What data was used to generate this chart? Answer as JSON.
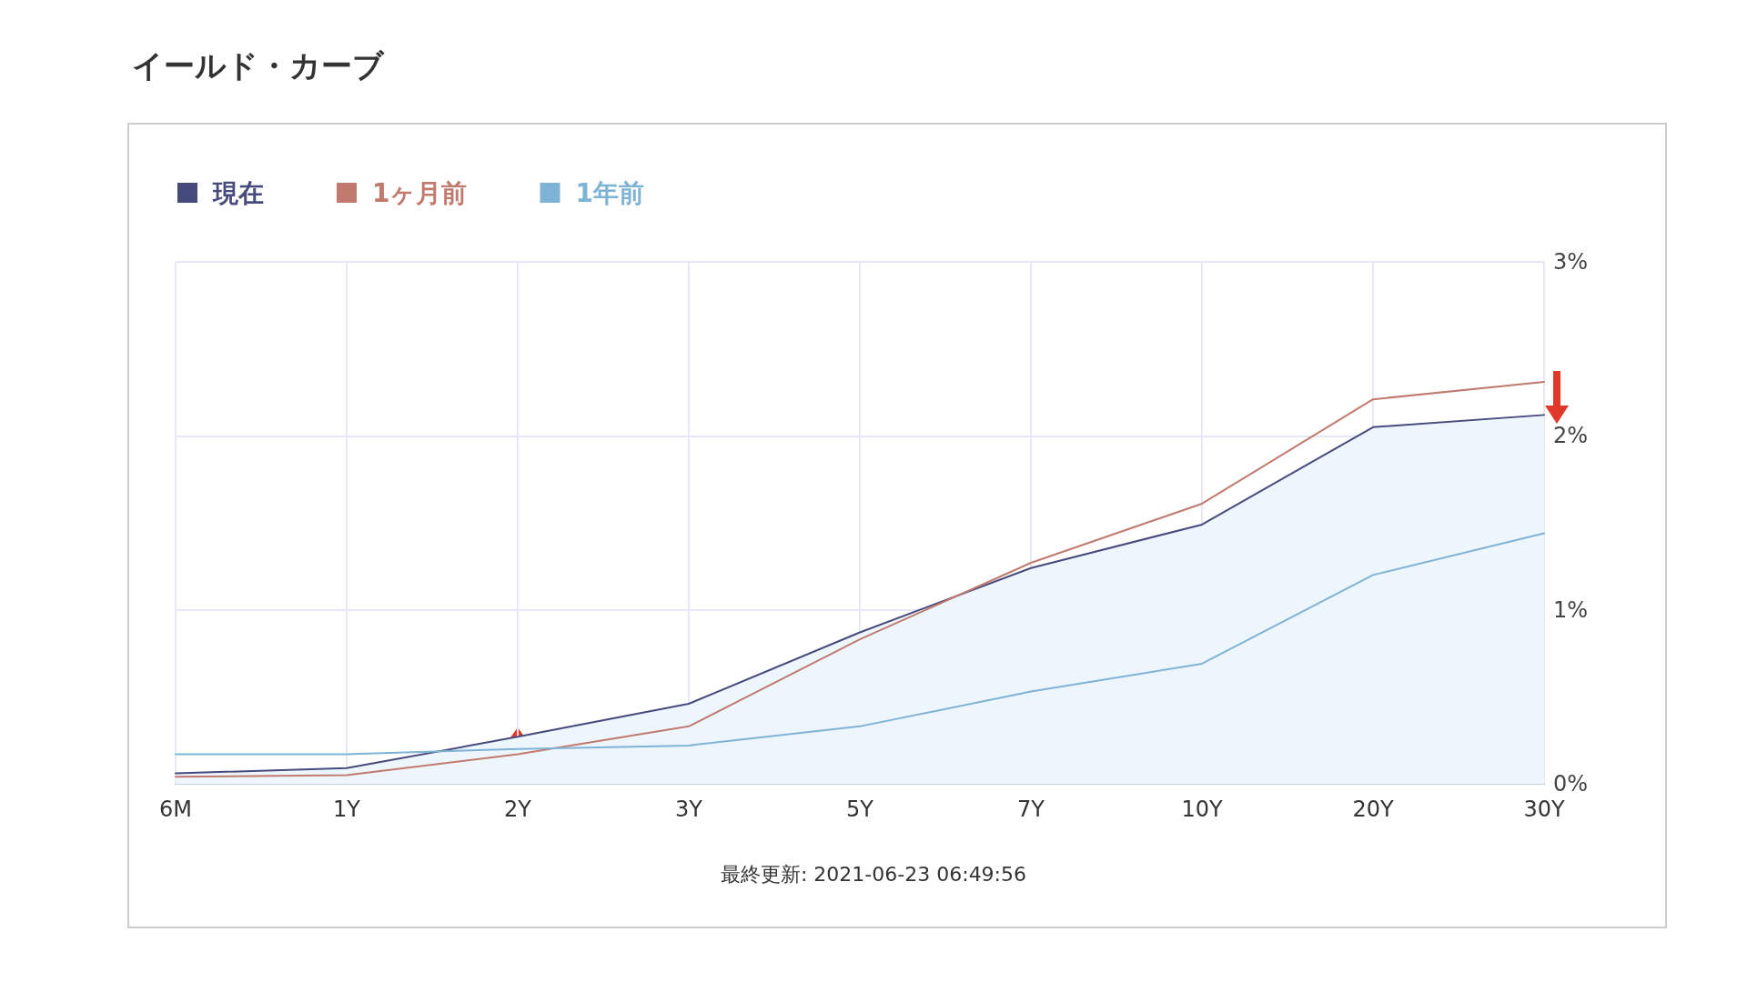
{
  "chart_data": {
    "type": "line",
    "title": "イールド・カーブ",
    "categories": [
      "6M",
      "1Y",
      "2Y",
      "3Y",
      "5Y",
      "7Y",
      "10Y",
      "20Y",
      "30Y"
    ],
    "series": [
      {
        "name": "現在",
        "type": "area",
        "color": "#464a7c",
        "values": [
          0.06,
          0.09,
          0.27,
          0.46,
          0.87,
          1.24,
          1.49,
          2.05,
          2.12
        ]
      },
      {
        "name": "1ヶ月前",
        "color": "#c07a6e",
        "values": [
          0.04,
          0.05,
          0.17,
          0.33,
          0.83,
          1.27,
          1.61,
          2.21,
          2.31
        ]
      },
      {
        "name": "1年前",
        "color": "#7fb3d5",
        "values": [
          0.17,
          0.17,
          0.2,
          0.22,
          0.33,
          0.53,
          0.69,
          1.2,
          1.44
        ]
      }
    ],
    "ylim": [
      0,
      3
    ],
    "yticks": [
      {
        "value": 0,
        "label": "0%"
      },
      {
        "value": 1,
        "label": "1%"
      },
      {
        "value": 2,
        "label": "2%"
      },
      {
        "value": 3,
        "label": "3%"
      }
    ],
    "grid": true,
    "legend": "top left",
    "marker": "none",
    "line_style": "solid",
    "annotations": [
      "最終更新: 2021-06-23 06:49:56"
    ]
  }
}
